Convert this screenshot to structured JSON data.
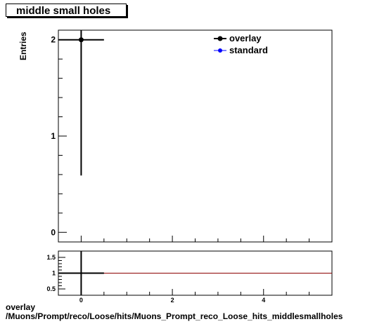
{
  "chart_data": [
    {
      "type": "scatter",
      "title": "middle small holes",
      "ylabel": "Entries",
      "xlabel": "",
      "xlim": [
        -0.5,
        5.5
      ],
      "ylim": [
        -0.1,
        2.1
      ],
      "y_ticks": [
        0,
        1,
        2
      ],
      "x_ticks": [
        0,
        2,
        4
      ],
      "grid": false,
      "legend_position": "top-right",
      "series": [
        {
          "name": "overlay",
          "color": "#000000",
          "points": [
            {
              "x": 0,
              "y": 2,
              "xerr": 0.5,
              "yerr_low": 1.41,
              "yerr_high": 1.41
            }
          ]
        },
        {
          "name": "standard",
          "color": "#0000ff",
          "points": []
        }
      ]
    },
    {
      "type": "line",
      "title": "",
      "xlim": [
        -0.5,
        5.5
      ],
      "ylim": [
        0.3,
        1.7
      ],
      "y_ticks": [
        0.5,
        1,
        1.5
      ],
      "y_tick_labels": [
        "0.5",
        "1",
        "1.5"
      ],
      "x_ticks": [
        0,
        2,
        4
      ],
      "ratio_line": 1,
      "ratio_line_color": "#8b0000",
      "points": [
        {
          "x": 0,
          "y": 1,
          "xerr": 0.5
        }
      ]
    }
  ],
  "captions": {
    "line1": "overlay",
    "line2": "/Muons/Prompt/reco/Loose/hits/Muons_Prompt_reco_Loose_hits_middlesmallholes"
  }
}
